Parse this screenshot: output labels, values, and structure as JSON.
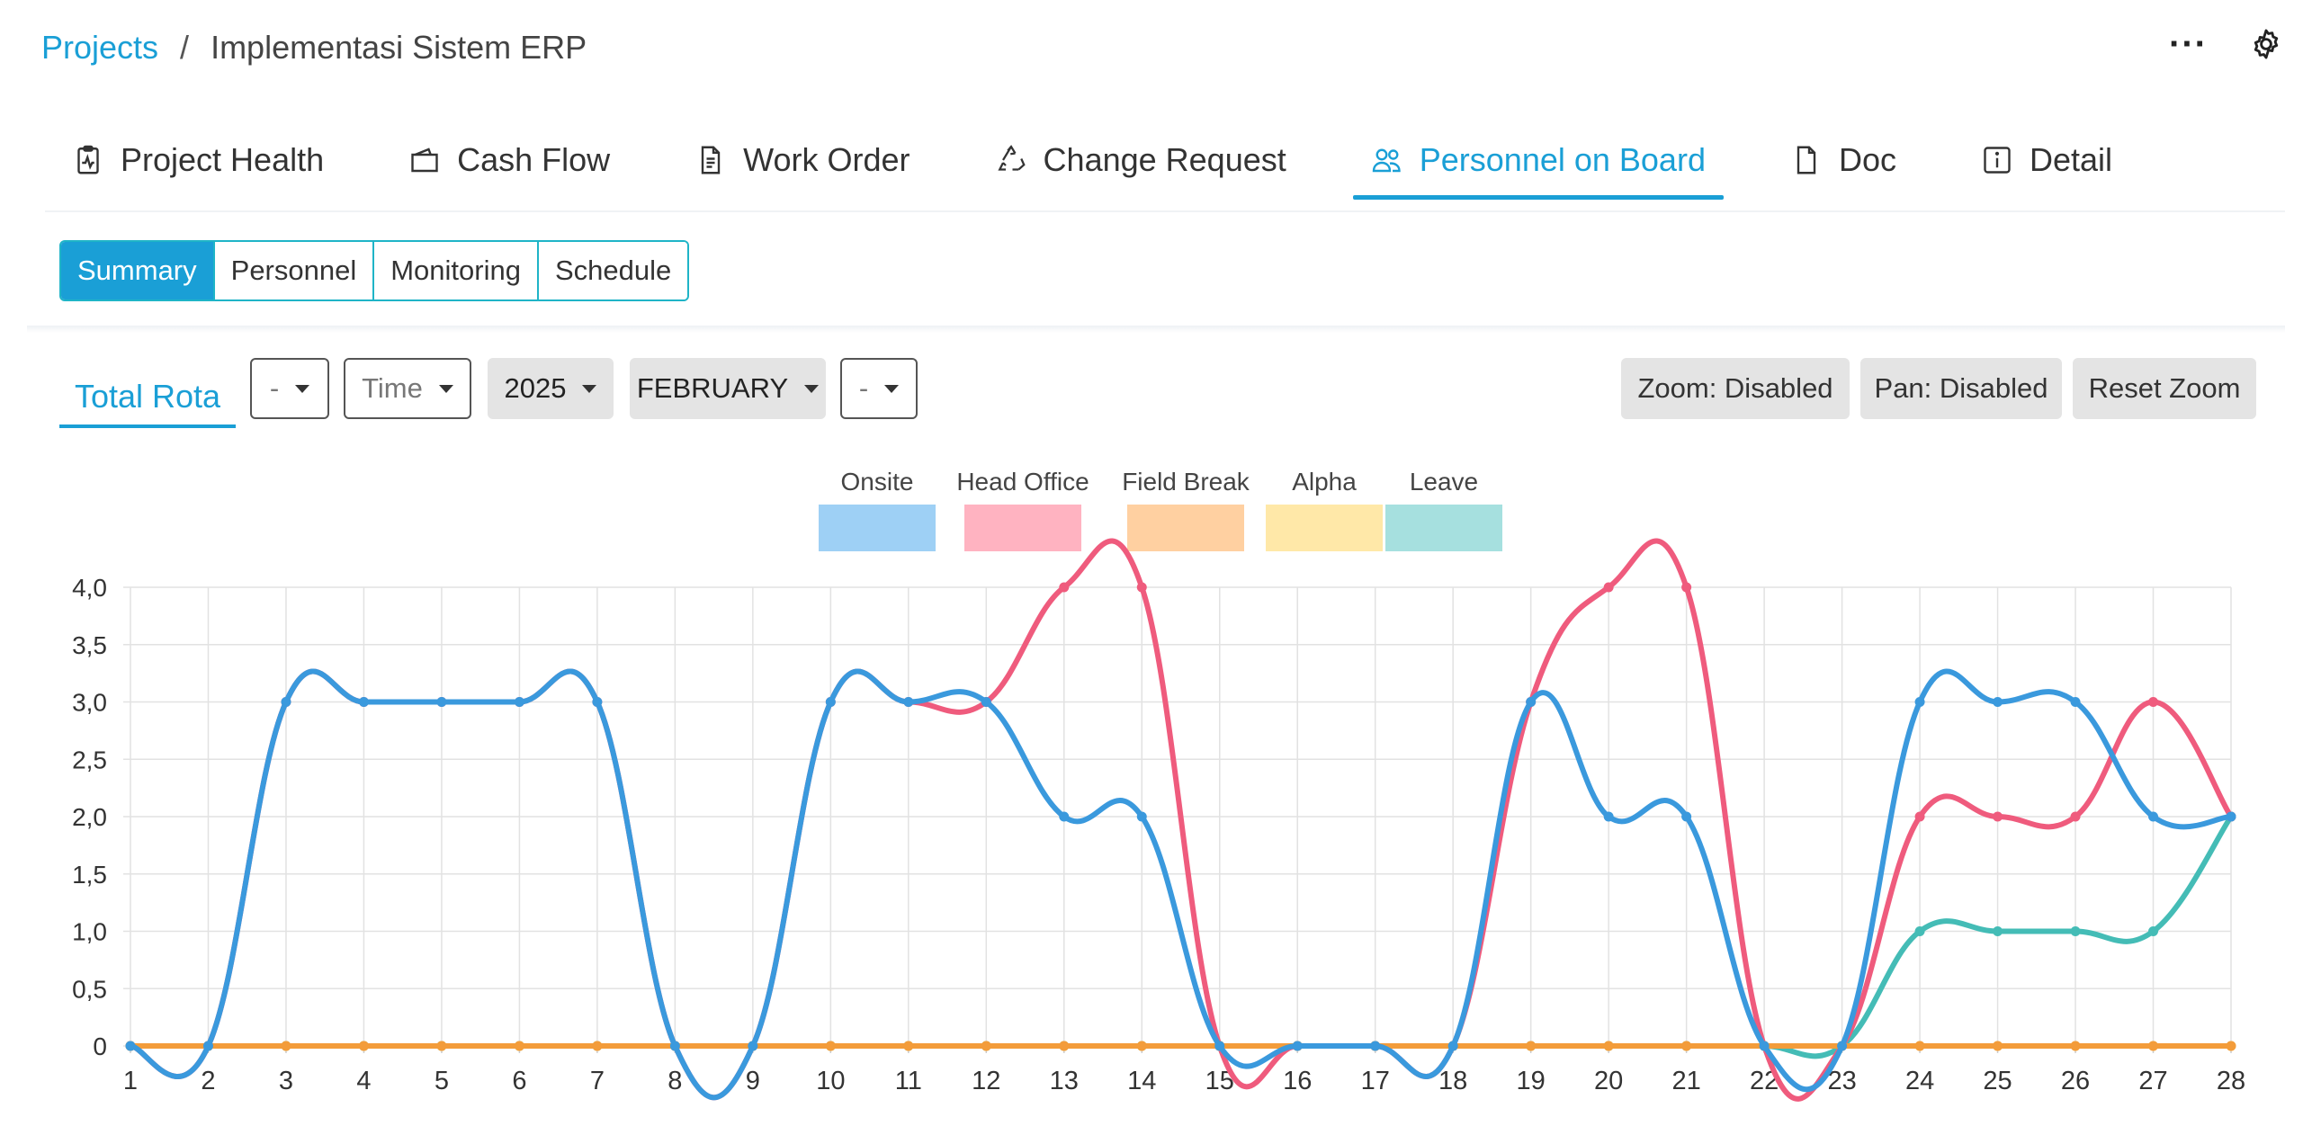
{
  "breadcrumb": {
    "root": "Projects",
    "separator": "/",
    "current": "Implementasi Sistem ERP"
  },
  "header": {
    "more_icon": "ellipsis-icon",
    "settings_icon": "gear-icon",
    "more_label": "···"
  },
  "main_tabs": [
    {
      "label": "Project Health",
      "icon": "clipboard-pulse-icon"
    },
    {
      "label": "Cash Flow",
      "icon": "wallet-icon"
    },
    {
      "label": "Work Order",
      "icon": "document-icon"
    },
    {
      "label": "Change Request",
      "icon": "recycle-icon"
    },
    {
      "label": "Personnel on Board",
      "icon": "people-icon",
      "active": true
    },
    {
      "label": "Doc",
      "icon": "file-icon"
    },
    {
      "label": "Detail",
      "icon": "info-icon"
    }
  ],
  "sub_tabs": [
    {
      "label": "Summary",
      "active": true
    },
    {
      "label": "Personnel"
    },
    {
      "label": "Monitoring"
    },
    {
      "label": "Schedule"
    }
  ],
  "toolbar": {
    "view_tab": "Total Rota",
    "filter_1": "-",
    "filter_time": "Time",
    "filter_year": "2025",
    "filter_month": "FEBRUARY",
    "filter_5": "-",
    "zoom_button": "Zoom: Disabled",
    "pan_button": "Pan: Disabled",
    "reset_button": "Reset Zoom"
  },
  "colors": {
    "accent": "#1a9fd6",
    "subtab_border": "#1fb4c7"
  },
  "chart_data": {
    "type": "line",
    "title": "",
    "xlabel": "",
    "ylabel": "",
    "x": [
      1,
      2,
      3,
      4,
      5,
      6,
      7,
      8,
      9,
      10,
      11,
      12,
      13,
      14,
      15,
      16,
      17,
      18,
      19,
      20,
      21,
      22,
      23,
      24,
      25,
      26,
      27,
      28
    ],
    "y_ticks": [
      "0",
      "0,5",
      "1,0",
      "1,5",
      "2,0",
      "2,5",
      "3,0",
      "3,5",
      "4,0"
    ],
    "ylim": [
      0,
      4
    ],
    "grid": true,
    "legend_position": "top-center",
    "series": [
      {
        "name": "Onsite",
        "legend_color": "#9ed0f5",
        "line_color": "#3a99dd",
        "values": [
          0,
          0,
          3,
          3,
          3,
          3,
          3,
          0,
          0,
          3,
          3,
          3,
          2,
          2,
          0,
          0,
          0,
          0,
          3,
          2,
          2,
          0,
          0,
          3,
          3,
          3,
          2,
          2
        ]
      },
      {
        "name": "Head Office",
        "legend_color": "#ffb3c1",
        "line_color": "#ef5b7d",
        "values": [
          0,
          0,
          3,
          3,
          3,
          3,
          3,
          0,
          0,
          3,
          3,
          3,
          4,
          4,
          0,
          0,
          0,
          0,
          3,
          4,
          4,
          0,
          0,
          2,
          2,
          2,
          3,
          2
        ]
      },
      {
        "name": "Field Break",
        "legend_color": "#ffd0a1",
        "line_color": "#f39c3a",
        "values": [
          0,
          0,
          0,
          0,
          0,
          0,
          0,
          0,
          0,
          0,
          0,
          0,
          0,
          0,
          0,
          0,
          0,
          0,
          0,
          0,
          0,
          0,
          0,
          0,
          0,
          0,
          0,
          0
        ]
      },
      {
        "name": "Alpha",
        "legend_color": "#ffe8a8",
        "line_color": "#f7c945",
        "values": [
          0,
          0,
          0,
          0,
          0,
          0,
          0,
          0,
          0,
          0,
          0,
          0,
          0,
          0,
          0,
          0,
          0,
          0,
          0,
          0,
          0,
          0,
          0,
          0,
          0,
          0,
          0,
          0
        ]
      },
      {
        "name": "Leave",
        "legend_color": "#a6e0df",
        "line_color": "#44bcb6",
        "values": [
          0,
          0,
          0,
          0,
          0,
          0,
          0,
          0,
          0,
          0,
          0,
          0,
          0,
          0,
          0,
          0,
          0,
          0,
          0,
          0,
          0,
          0,
          0,
          1,
          1,
          1,
          1,
          2
        ]
      }
    ]
  }
}
